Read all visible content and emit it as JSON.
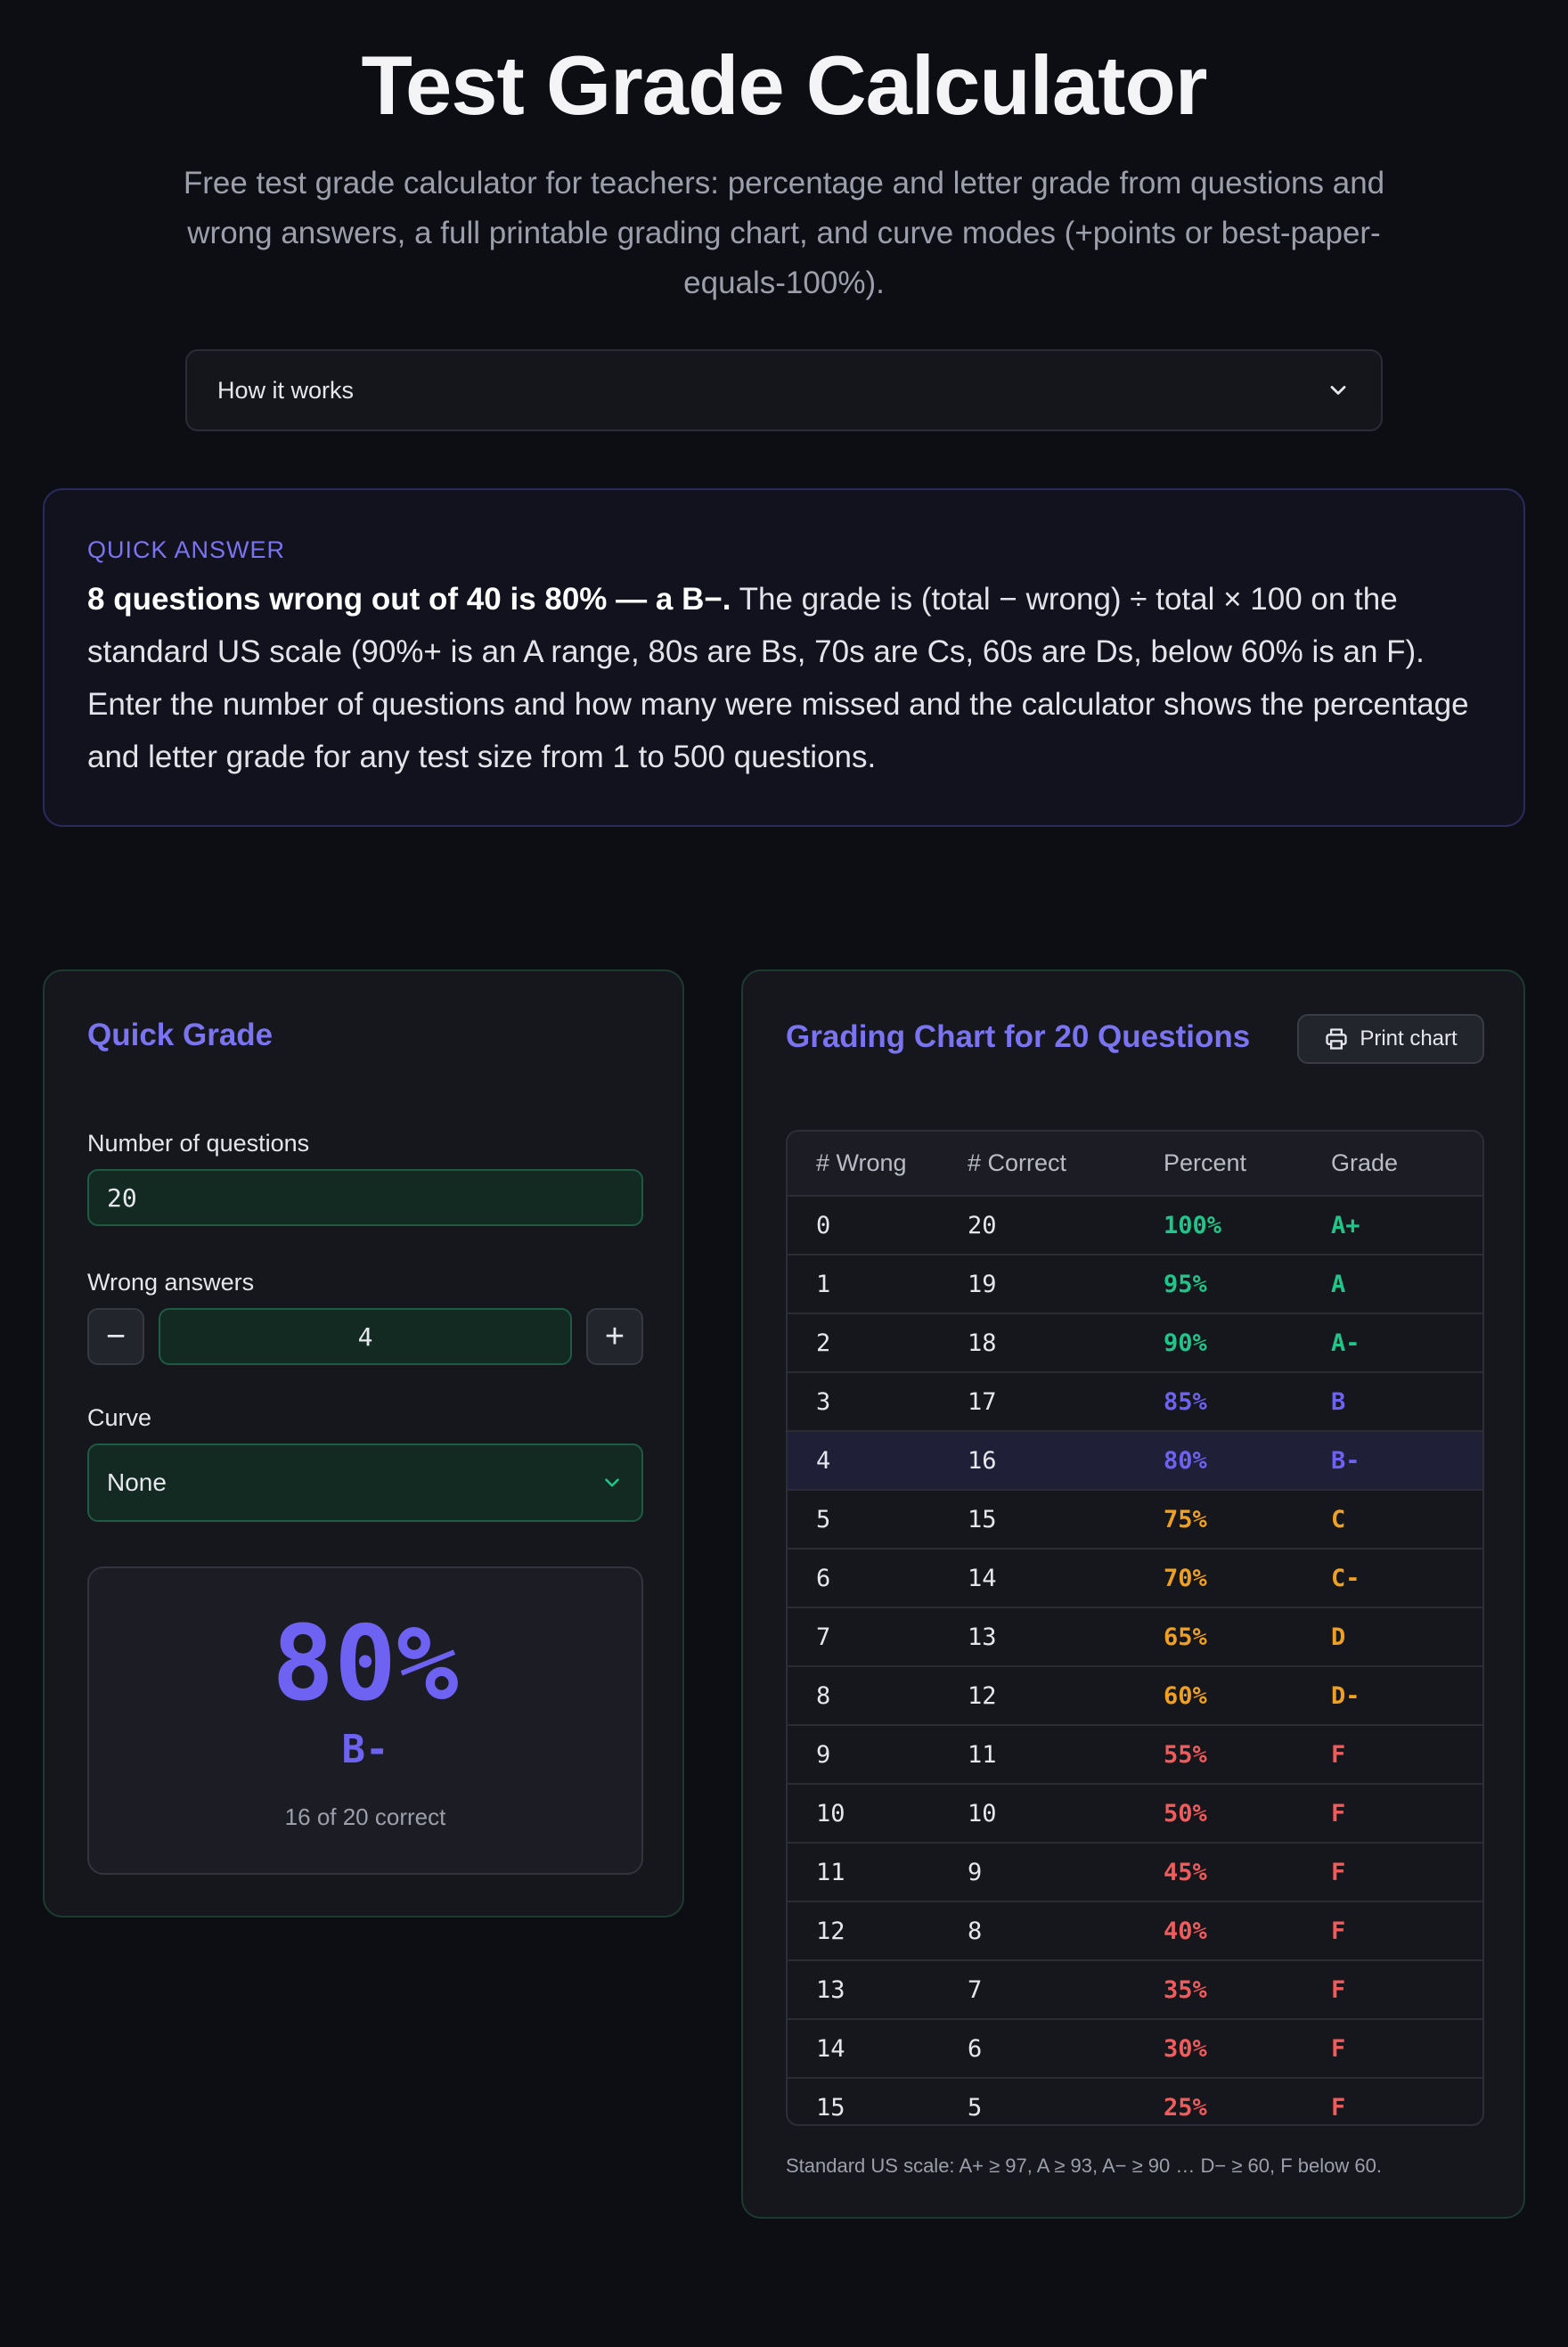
{
  "header": {
    "title": "Test Grade Calculator",
    "subtitle": "Free test grade calculator for teachers: percentage and letter grade from questions and wrong answers, a full printable grading chart, and curve modes (+points or best-paper-equals-100%)."
  },
  "how_it_works": {
    "label": "How it works",
    "icon": "chevron-down-icon"
  },
  "quick_answer": {
    "label": "QUICK ANSWER",
    "lead": "8 questions wrong out of 40 is 80% — a B−.",
    "body": " The grade is (total − wrong) ÷ total × 100 on the standard US scale (90%+ is an A range, 80s are Bs, 70s are Cs, 60s are Ds, below 60% is an F). Enter the number of questions and how many were missed and the calculator shows the percentage and letter grade for any test size from 1 to 500 questions."
  },
  "quick_grade": {
    "title": "Quick Grade",
    "questions_label": "Number of questions",
    "questions_value": "20",
    "wrong_label": "Wrong answers",
    "wrong_value": "4",
    "decrement": "−",
    "increment": "+",
    "curve_label": "Curve",
    "curve_value": "None",
    "result_percent": "80%",
    "result_grade": "B-",
    "result_sub": "16 of 20 correct"
  },
  "grading_chart": {
    "title": "Grading Chart for 20 Questions",
    "print_label": "Print chart",
    "print_icon": "printer-icon",
    "columns": [
      "# Wrong",
      "# Correct",
      "Percent",
      "Grade"
    ],
    "highlight_row": 4,
    "rows": [
      {
        "wrong": "0",
        "correct": "20",
        "percent": "100%",
        "grade": "A+"
      },
      {
        "wrong": "1",
        "correct": "19",
        "percent": "95%",
        "grade": "A"
      },
      {
        "wrong": "2",
        "correct": "18",
        "percent": "90%",
        "grade": "A-"
      },
      {
        "wrong": "3",
        "correct": "17",
        "percent": "85%",
        "grade": "B"
      },
      {
        "wrong": "4",
        "correct": "16",
        "percent": "80%",
        "grade": "B-"
      },
      {
        "wrong": "5",
        "correct": "15",
        "percent": "75%",
        "grade": "C"
      },
      {
        "wrong": "6",
        "correct": "14",
        "percent": "70%",
        "grade": "C-"
      },
      {
        "wrong": "7",
        "correct": "13",
        "percent": "65%",
        "grade": "D"
      },
      {
        "wrong": "8",
        "correct": "12",
        "percent": "60%",
        "grade": "D-"
      },
      {
        "wrong": "9",
        "correct": "11",
        "percent": "55%",
        "grade": "F"
      },
      {
        "wrong": "10",
        "correct": "10",
        "percent": "50%",
        "grade": "F"
      },
      {
        "wrong": "11",
        "correct": "9",
        "percent": "45%",
        "grade": "F"
      },
      {
        "wrong": "12",
        "correct": "8",
        "percent": "40%",
        "grade": "F"
      },
      {
        "wrong": "13",
        "correct": "7",
        "percent": "35%",
        "grade": "F"
      },
      {
        "wrong": "14",
        "correct": "6",
        "percent": "30%",
        "grade": "F"
      },
      {
        "wrong": "15",
        "correct": "5",
        "percent": "25%",
        "grade": "F"
      }
    ],
    "footnote": "Standard US scale: A+ ≥ 97, A ≥ 93, A− ≥ 90 … D− ≥ 60, F below 60."
  },
  "colors": {
    "accent": "#7b74f0",
    "result": "#6e62f2",
    "grade_a": "#20c58a",
    "grade_b": "#6e62f2",
    "grade_cd": "#f0a020",
    "grade_f": "#f25b5b"
  }
}
